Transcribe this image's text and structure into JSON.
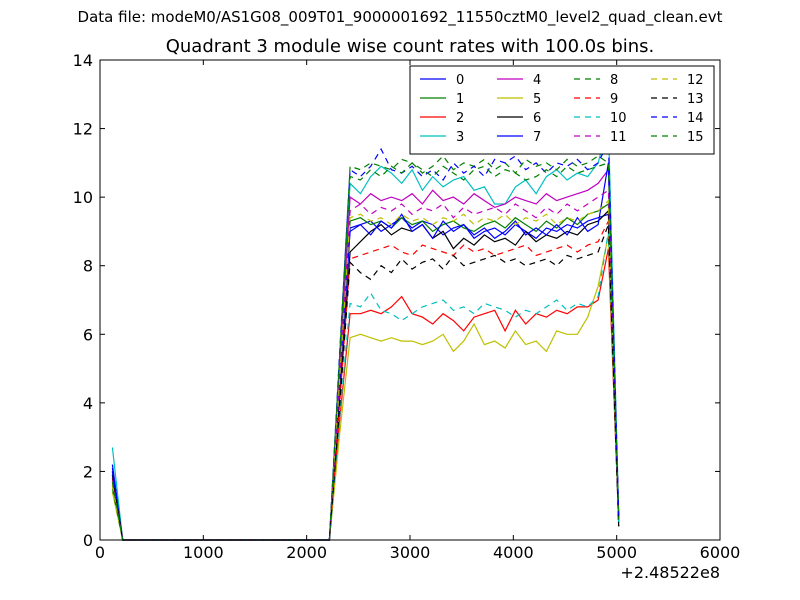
{
  "figure": {
    "suptitle": "Data file: modeM0/AS1G08_009T01_9000001692_11550cztM0_level2_quad_clean.evt",
    "title": "Quadrant 3 module wise count rates with 100.0s bins.",
    "x_offset_label": "+2.48522e8"
  },
  "chart_data": {
    "type": "line",
    "title": "Quadrant 3 module wise count rates with 100.0s bins.",
    "xlabel": "",
    "ylabel": "",
    "xlim": [
      0,
      6000
    ],
    "ylim": [
      0,
      14
    ],
    "x_offset": "+2.48522e8",
    "xticks": [
      0,
      1000,
      2000,
      3000,
      4000,
      5000,
      6000
    ],
    "yticks": [
      0,
      2,
      4,
      6,
      8,
      10,
      12,
      14
    ],
    "grid": false,
    "legend": {
      "location": "top-right",
      "ncol": 4
    },
    "x": [
      120,
      220,
      320,
      420,
      520,
      620,
      720,
      820,
      920,
      1020,
      1120,
      1220,
      1320,
      1420,
      1520,
      1620,
      1720,
      1820,
      1920,
      2020,
      2120,
      2220,
      2320,
      2420,
      2520,
      2620,
      2720,
      2820,
      2920,
      3020,
      3120,
      3220,
      3320,
      3420,
      3520,
      3620,
      3720,
      3820,
      3920,
      4020,
      4120,
      4220,
      4320,
      4420,
      4520,
      4620,
      4720,
      4820,
      4920,
      5020
    ],
    "series": [
      {
        "name": "0",
        "color": "#0000ff",
        "dash": "solid",
        "values": [
          2.2,
          0,
          0,
          0,
          0,
          0,
          0,
          0,
          0,
          0,
          0,
          0,
          0,
          0,
          0,
          0,
          0,
          0,
          0,
          0,
          0,
          0,
          4.5,
          9.1,
          9.2,
          9.3,
          9.0,
          9.2,
          9.4,
          9.1,
          9.3,
          9.2,
          8.9,
          9.1,
          9.2,
          8.8,
          9.0,
          9.1,
          8.9,
          9.2,
          9.0,
          8.8,
          9.1,
          9.0,
          9.2,
          9.1,
          9.3,
          9.4,
          9.5,
          0.6
        ]
      },
      {
        "name": "1",
        "color": "#008000",
        "dash": "solid",
        "values": [
          1.6,
          0,
          0,
          0,
          0,
          0,
          0,
          0,
          0,
          0,
          0,
          0,
          0,
          0,
          0,
          0,
          0,
          0,
          0,
          0,
          0,
          0,
          4.8,
          9.3,
          9.4,
          9.2,
          9.3,
          9.1,
          9.4,
          9.2,
          9.3,
          9.0,
          9.2,
          9.3,
          9.1,
          9.0,
          9.2,
          9.3,
          9.1,
          9.4,
          9.2,
          9.0,
          9.3,
          9.1,
          9.4,
          9.2,
          9.5,
          9.6,
          9.8,
          0.6
        ]
      },
      {
        "name": "2",
        "color": "#ff0000",
        "dash": "solid",
        "values": [
          1.8,
          0,
          0,
          0,
          0,
          0,
          0,
          0,
          0,
          0,
          0,
          0,
          0,
          0,
          0,
          0,
          0,
          0,
          0,
          0,
          0,
          0,
          3.5,
          6.6,
          6.6,
          6.7,
          6.6,
          6.8,
          7.1,
          6.6,
          6.5,
          6.3,
          6.6,
          6.4,
          6.1,
          6.5,
          6.6,
          6.7,
          6.1,
          6.7,
          6.3,
          6.6,
          6.5,
          6.7,
          6.6,
          6.8,
          6.8,
          7.0,
          8.5,
          0.5
        ]
      },
      {
        "name": "3",
        "color": "#00bfbf",
        "dash": "solid",
        "values": [
          2.7,
          0,
          0,
          0,
          0,
          0,
          0,
          0,
          0,
          0,
          0,
          0,
          0,
          0,
          0,
          0,
          0,
          0,
          0,
          0,
          0,
          0,
          5.2,
          10.4,
          10.1,
          10.6,
          10.9,
          10.7,
          10.4,
          10.8,
          10.2,
          10.6,
          10.3,
          10.5,
          10.6,
          10.2,
          10.3,
          9.8,
          9.8,
          10.3,
          10.5,
          10.1,
          10.6,
          10.8,
          10.5,
          10.7,
          10.6,
          11.0,
          12.1,
          0.8
        ]
      },
      {
        "name": "4",
        "color": "#bf00bf",
        "dash": "solid",
        "values": [
          1.9,
          0,
          0,
          0,
          0,
          0,
          0,
          0,
          0,
          0,
          0,
          0,
          0,
          0,
          0,
          0,
          0,
          0,
          0,
          0,
          0,
          0,
          5.0,
          10.0,
          9.8,
          10.1,
          9.9,
          10.0,
          9.9,
          10.1,
          9.8,
          10.2,
          9.9,
          10.0,
          9.8,
          10.1,
          9.9,
          9.7,
          9.8,
          10.0,
          9.9,
          9.8,
          10.1,
          9.9,
          10.0,
          10.1,
          10.2,
          10.4,
          10.8,
          0.7
        ]
      },
      {
        "name": "5",
        "color": "#bfbf00",
        "dash": "solid",
        "values": [
          1.4,
          0,
          0,
          0,
          0,
          0,
          0,
          0,
          0,
          0,
          0,
          0,
          0,
          0,
          0,
          0,
          0,
          0,
          0,
          0,
          0,
          0,
          3.1,
          5.9,
          6.0,
          5.9,
          5.8,
          5.9,
          5.8,
          5.8,
          5.7,
          5.8,
          6.0,
          5.5,
          5.8,
          6.3,
          5.7,
          5.8,
          5.6,
          6.1,
          5.7,
          5.8,
          5.5,
          6.1,
          6.0,
          6.0,
          6.5,
          7.4,
          8.9,
          0.5
        ]
      },
      {
        "name": "6",
        "color": "#000000",
        "dash": "solid",
        "values": [
          2.0,
          0,
          0,
          0,
          0,
          0,
          0,
          0,
          0,
          0,
          0,
          0,
          0,
          0,
          0,
          0,
          0,
          0,
          0,
          0,
          0,
          0,
          4.2,
          8.4,
          8.7,
          9.0,
          9.2,
          8.9,
          9.1,
          9.0,
          9.2,
          8.8,
          9.0,
          8.5,
          8.8,
          8.6,
          8.9,
          8.7,
          8.8,
          8.6,
          9.0,
          8.7,
          8.9,
          8.8,
          9.0,
          8.9,
          9.2,
          9.3,
          9.6,
          0.4
        ]
      },
      {
        "name": "7",
        "color": "#0000ff",
        "dash": "solid",
        "values": [
          2.1,
          0,
          0,
          0,
          0,
          0,
          0,
          0,
          0,
          0,
          0,
          0,
          0,
          0,
          0,
          0,
          0,
          0,
          0,
          0,
          0,
          0,
          4.6,
          9.0,
          9.2,
          8.9,
          9.3,
          9.1,
          9.5,
          9.0,
          9.2,
          8.8,
          9.3,
          9.0,
          9.2,
          8.9,
          9.1,
          8.8,
          9.0,
          9.3,
          8.9,
          9.1,
          8.9,
          9.2,
          8.9,
          9.4,
          9.0,
          9.2,
          11.0,
          0.6
        ]
      },
      {
        "name": "8",
        "color": "#008000",
        "dash": "dashed",
        "values": [
          1.5,
          0,
          0,
          0,
          0,
          0,
          0,
          0,
          0,
          0,
          0,
          0,
          0,
          0,
          0,
          0,
          0,
          0,
          0,
          0,
          0,
          0,
          5.4,
          10.9,
          10.8,
          11.0,
          10.9,
          10.8,
          11.1,
          11.0,
          10.7,
          10.9,
          11.2,
          10.8,
          11.0,
          10.9,
          11.1,
          10.8,
          11.0,
          10.7,
          11.1,
          10.9,
          11.0,
          10.8,
          11.1,
          10.9,
          11.0,
          11.2,
          11.0,
          0.6
        ]
      },
      {
        "name": "9",
        "color": "#ff0000",
        "dash": "dashed",
        "values": [
          1.7,
          0,
          0,
          0,
          0,
          0,
          0,
          0,
          0,
          0,
          0,
          0,
          0,
          0,
          0,
          0,
          0,
          0,
          0,
          0,
          0,
          0,
          4.0,
          8.2,
          8.3,
          8.4,
          8.5,
          8.6,
          8.4,
          8.3,
          8.6,
          8.5,
          8.4,
          8.3,
          8.6,
          8.4,
          8.5,
          8.3,
          8.4,
          8.5,
          8.6,
          8.3,
          8.4,
          8.5,
          8.6,
          8.4,
          8.6,
          8.7,
          9.3,
          0.5
        ]
      },
      {
        "name": "10",
        "color": "#00bfbf",
        "dash": "dashed",
        "values": [
          1.9,
          0,
          0,
          0,
          0,
          0,
          0,
          0,
          0,
          0,
          0,
          0,
          0,
          0,
          0,
          0,
          0,
          0,
          0,
          0,
          0,
          0,
          3.6,
          6.9,
          6.8,
          7.2,
          6.7,
          6.6,
          6.4,
          6.6,
          6.8,
          6.9,
          7.0,
          6.7,
          6.8,
          6.6,
          6.9,
          6.8,
          6.7,
          6.5,
          6.7,
          6.6,
          6.8,
          7.0,
          6.7,
          6.9,
          6.8,
          7.1,
          9.0,
          0.5
        ]
      },
      {
        "name": "11",
        "color": "#bf00bf",
        "dash": "dashed",
        "values": [
          1.8,
          0,
          0,
          0,
          0,
          0,
          0,
          0,
          0,
          0,
          0,
          0,
          0,
          0,
          0,
          0,
          0,
          0,
          0,
          0,
          0,
          0,
          4.8,
          9.6,
          9.8,
          9.5,
          9.7,
          9.6,
          9.8,
          9.5,
          9.7,
          9.6,
          9.8,
          9.4,
          9.7,
          9.5,
          9.6,
          9.7,
          9.5,
          9.8,
          9.6,
          9.4,
          9.7,
          9.5,
          9.8,
          9.6,
          9.8,
          10.0,
          10.2,
          0.6
        ]
      },
      {
        "name": "12",
        "color": "#bfbf00",
        "dash": "dashed",
        "values": [
          1.6,
          0,
          0,
          0,
          0,
          0,
          0,
          0,
          0,
          0,
          0,
          0,
          0,
          0,
          0,
          0,
          0,
          0,
          0,
          0,
          0,
          0,
          4.7,
          9.4,
          9.5,
          9.3,
          9.4,
          9.2,
          9.5,
          9.3,
          9.4,
          9.2,
          9.4,
          9.3,
          9.5,
          9.2,
          9.4,
          9.3,
          9.5,
          9.2,
          9.4,
          9.3,
          9.5,
          9.2,
          9.4,
          9.3,
          9.5,
          9.6,
          9.9,
          0.6
        ]
      },
      {
        "name": "13",
        "color": "#000000",
        "dash": "dashed",
        "values": [
          1.9,
          0,
          0,
          0,
          0,
          0,
          0,
          0,
          0,
          0,
          0,
          0,
          0,
          0,
          0,
          0,
          0,
          0,
          0,
          0,
          0,
          0,
          3.9,
          8.1,
          7.8,
          7.6,
          8.0,
          7.8,
          8.2,
          7.9,
          8.1,
          8.2,
          7.9,
          8.3,
          8.0,
          8.1,
          8.2,
          8.3,
          8.1,
          8.2,
          8.0,
          8.1,
          8.2,
          8.0,
          8.3,
          8.2,
          8.3,
          8.4,
          9.2,
          0.4
        ]
      },
      {
        "name": "14",
        "color": "#0000ff",
        "dash": "dashed",
        "values": [
          2.0,
          0,
          0,
          0,
          0,
          0,
          0,
          0,
          0,
          0,
          0,
          0,
          0,
          0,
          0,
          0,
          0,
          0,
          0,
          0,
          0,
          0,
          5.5,
          10.8,
          10.6,
          10.9,
          11.4,
          10.8,
          10.7,
          10.9,
          10.6,
          10.8,
          10.5,
          11.0,
          10.7,
          10.9,
          10.6,
          11.1,
          11.0,
          11.2,
          10.8,
          11.0,
          10.7,
          11.0,
          10.9,
          11.1,
          10.8,
          11.0,
          11.6,
          0.7
        ]
      },
      {
        "name": "15",
        "color": "#008000",
        "dash": "dashed",
        "values": [
          1.7,
          0,
          0,
          0,
          0,
          0,
          0,
          0,
          0,
          0,
          0,
          0,
          0,
          0,
          0,
          0,
          0,
          0,
          0,
          0,
          0,
          0,
          5.3,
          10.6,
          10.5,
          10.8,
          10.6,
          10.9,
          10.7,
          11.0,
          10.8,
          10.6,
          10.9,
          10.7,
          10.5,
          10.8,
          10.9,
          10.6,
          10.8,
          10.7,
          10.5,
          10.6,
          10.8,
          10.6,
          10.9,
          10.7,
          10.8,
          10.9,
          11.0,
          0.6
        ]
      }
    ]
  }
}
